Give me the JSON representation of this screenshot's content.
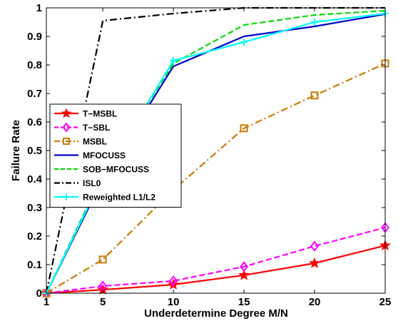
{
  "chart_data": {
    "type": "line",
    "xlabel": "Underdetermine Degree M/N",
    "ylabel": "Failure Rate",
    "xlim": [
      1,
      25
    ],
    "ylim": [
      0,
      1
    ],
    "x_ticks": [
      1,
      5,
      10,
      15,
      20,
      25
    ],
    "y_ticks": [
      0,
      0.1,
      0.2,
      0.3,
      0.4,
      0.5,
      0.6,
      0.7,
      0.8,
      0.9,
      1
    ],
    "y_tick_labels": [
      "0",
      "0.1",
      "0.2",
      "0.3",
      "0.4",
      "0.5",
      "0.6",
      "0.7",
      "0.8",
      "0.9",
      "1"
    ],
    "grid": false,
    "legend_position": "middle-left",
    "series": [
      {
        "name": "T−MSBL",
        "color": "#ff0000",
        "dash": "solid",
        "marker": "star",
        "x": [
          1,
          5,
          10,
          15,
          20,
          25
        ],
        "y": [
          0,
          0.012,
          0.03,
          0.063,
          0.105,
          0.167
        ]
      },
      {
        "name": "T−SBL",
        "color": "#ff00ff",
        "dash": "dashed",
        "marker": "diamond",
        "x": [
          1,
          5,
          10,
          15,
          20,
          25
        ],
        "y": [
          0,
          0.025,
          0.043,
          0.093,
          0.165,
          0.23
        ]
      },
      {
        "name": "MSBL",
        "color": "#cc7a00",
        "dash": "dashdot",
        "marker": "square",
        "x": [
          1,
          5,
          10,
          15,
          20,
          25
        ],
        "y": [
          0,
          0.118,
          0.362,
          0.578,
          0.693,
          0.805
        ]
      },
      {
        "name": "MFOCUSS",
        "color": "#0000cc",
        "dash": "solid",
        "marker": "none",
        "x": [
          1,
          5,
          10,
          15,
          20,
          25
        ],
        "y": [
          0,
          0.4,
          0.795,
          0.9,
          0.935,
          0.978
        ]
      },
      {
        "name": "SOB−MFOCUSS",
        "color": "#00dd00",
        "dash": "dashed",
        "marker": "none",
        "x": [
          1,
          5,
          10,
          15,
          20,
          25
        ],
        "y": [
          0,
          0.42,
          0.805,
          0.94,
          0.975,
          0.99
        ]
      },
      {
        "name": "ISL0",
        "color": "#000000",
        "dash": "dashdot",
        "marker": "none",
        "x": [
          1,
          5,
          10,
          15,
          20,
          25
        ],
        "y": [
          0,
          0.955,
          0.98,
          1.0,
          1.0,
          1.0
        ]
      },
      {
        "name": "Reweighted L1/L2",
        "color": "#00ffff",
        "dash": "solid",
        "marker": "plus",
        "x": [
          1,
          5,
          10,
          15,
          20,
          25
        ],
        "y": [
          0,
          0.41,
          0.815,
          0.88,
          0.95,
          0.98
        ]
      }
    ]
  }
}
